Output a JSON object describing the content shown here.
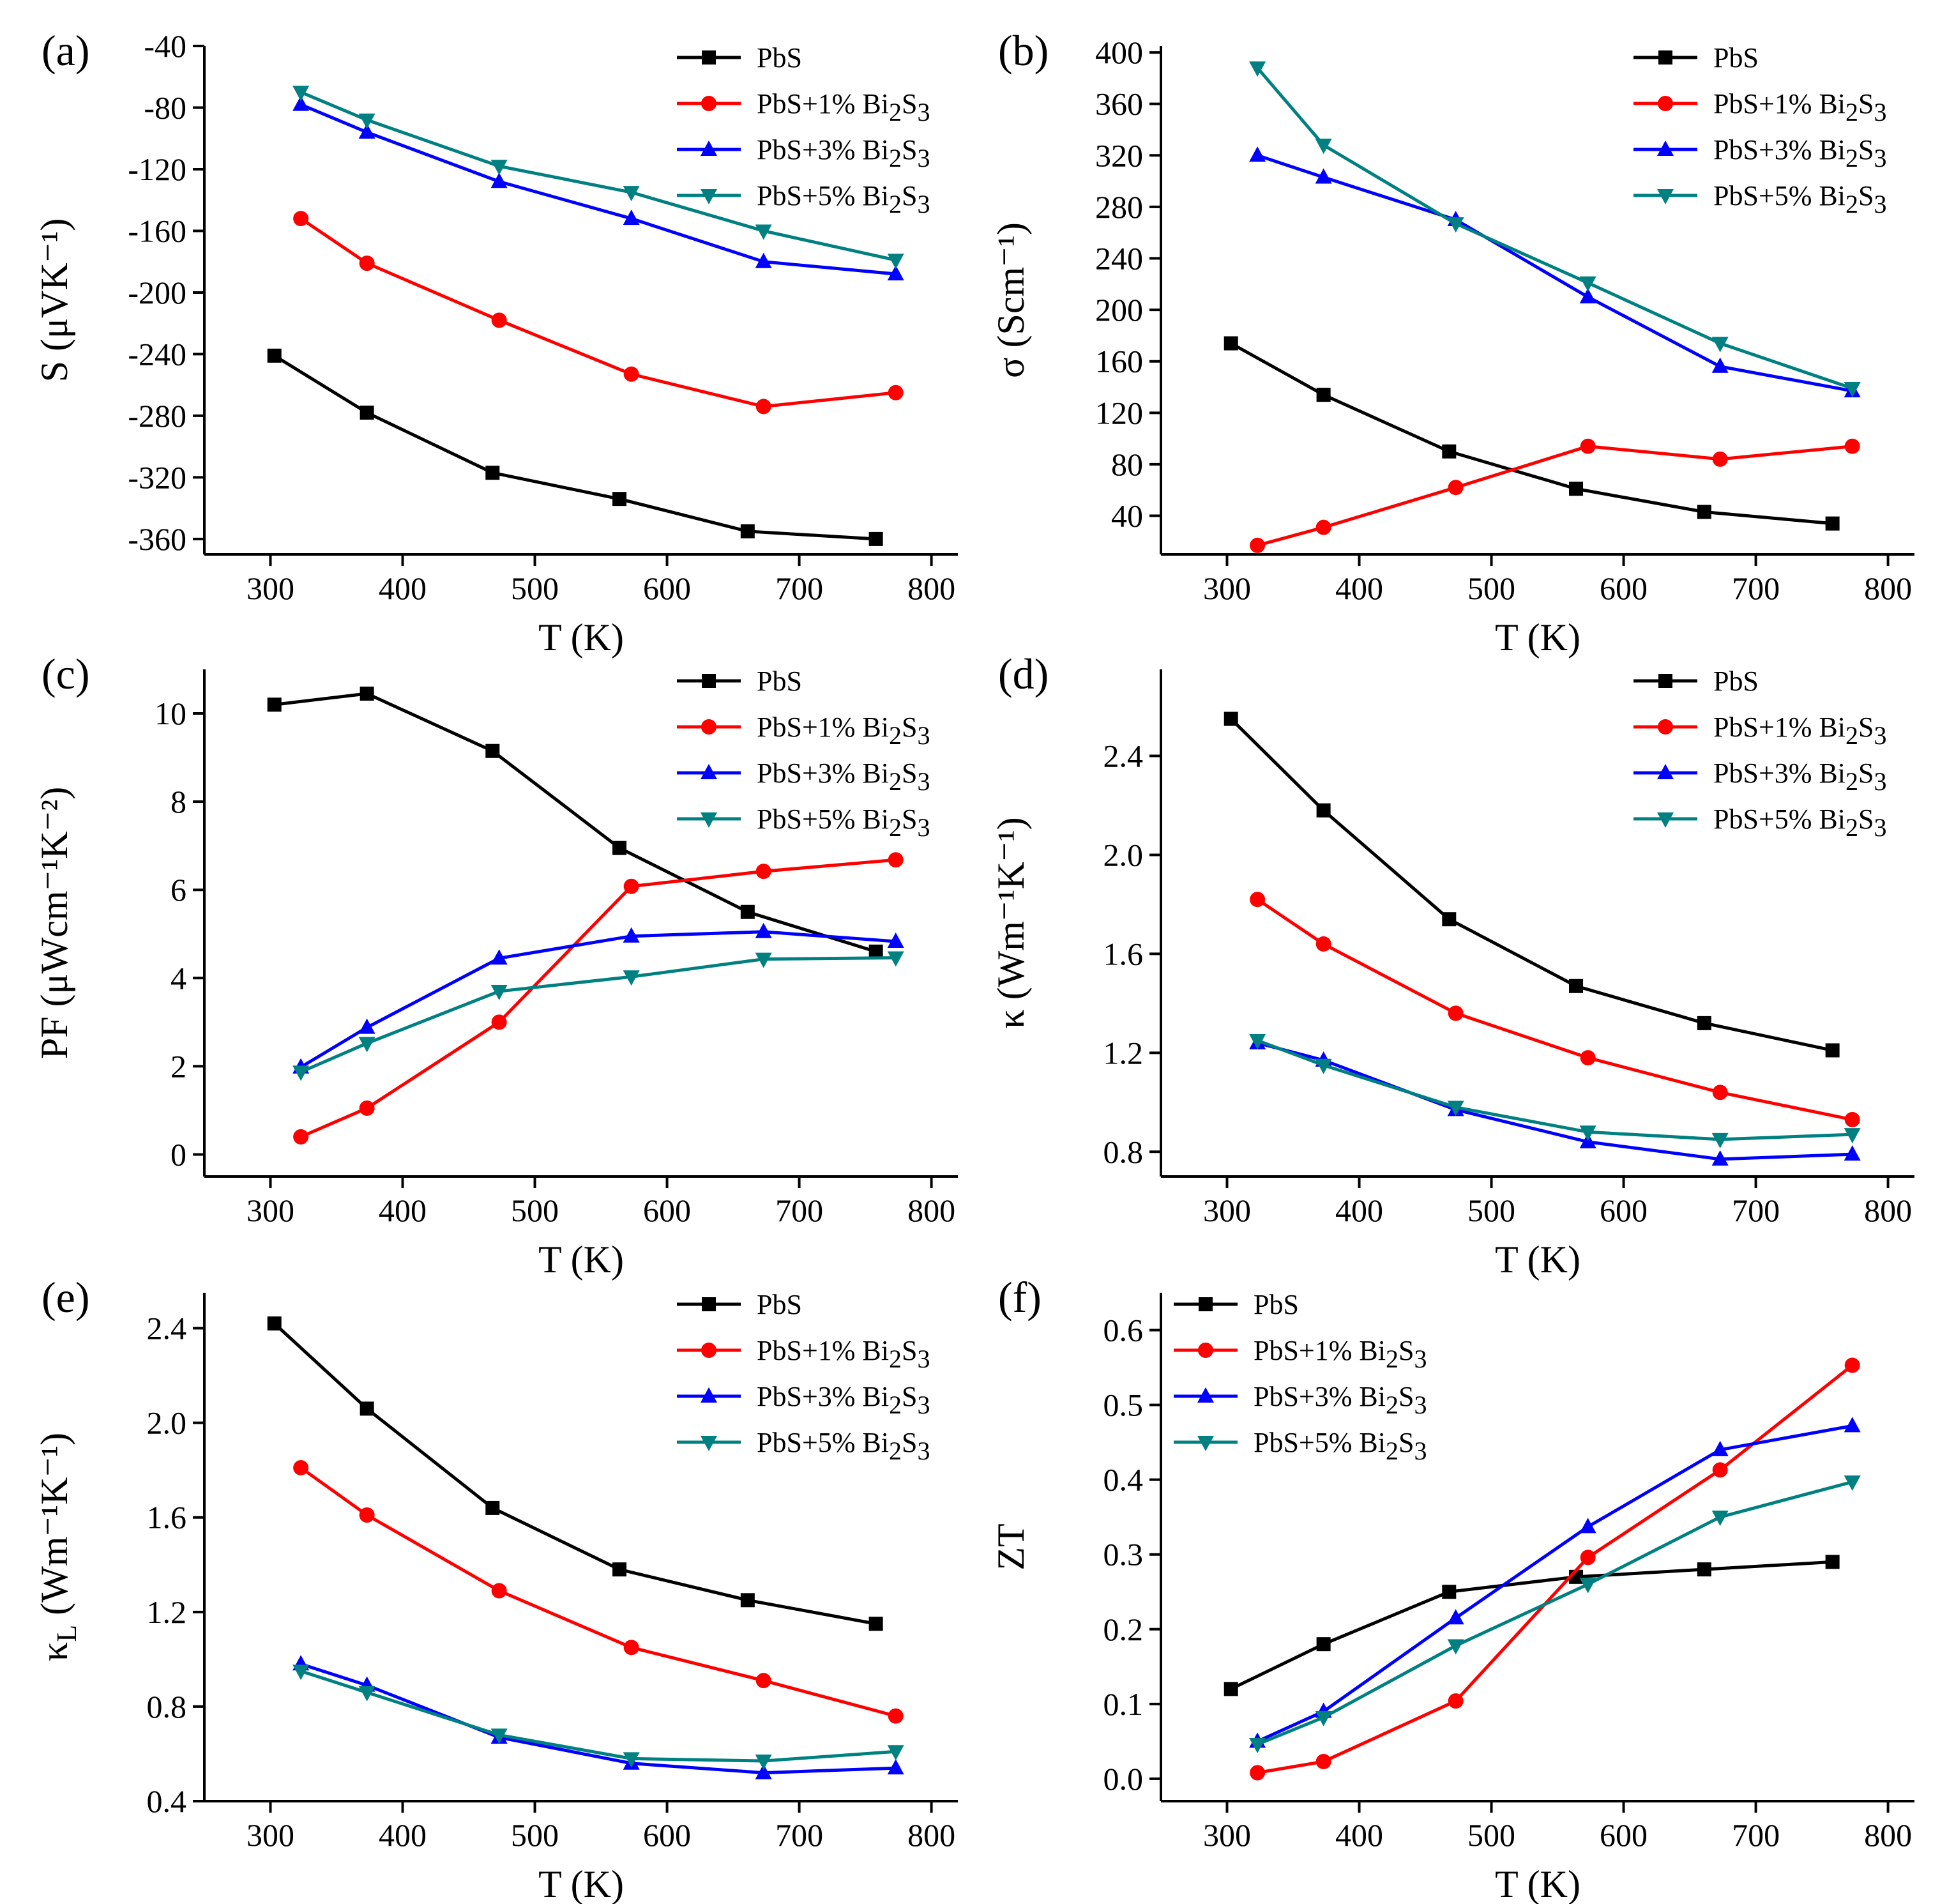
{
  "colors": {
    "PbS": "#000000",
    "1pct": "#ff0000",
    "3pct": "#0000ff",
    "5pct": "#008080"
  },
  "legend": {
    "series": [
      {
        "key": "PbS",
        "label": "PbS",
        "color": "#000000",
        "marker": "square"
      },
      {
        "key": "1pct",
        "label": "PbS+1% Bi2S3",
        "color": "#ff0000",
        "marker": "circle"
      },
      {
        "key": "3pct",
        "label": "PbS+3% Bi2S3",
        "color": "#0000ff",
        "marker": "triangle-up"
      },
      {
        "key": "5pct",
        "label": "PbS+5% Bi2S3",
        "color": "#008080",
        "marker": "triangle-down"
      }
    ]
  },
  "chart_data": [
    {
      "id": "a",
      "letter": "(a)",
      "type": "line",
      "xlabel": "T (K)",
      "ylabel": "S (μVK⁻¹)",
      "xlim": [
        250,
        820
      ],
      "ylim": [
        -370,
        -40
      ],
      "xticks": [
        300,
        400,
        500,
        600,
        700,
        800
      ],
      "yticks": [
        -40,
        -80,
        -120,
        -160,
        -200,
        -240,
        -280,
        -320,
        -360
      ],
      "legend_position": "top-right",
      "series": [
        {
          "key": "PbS",
          "x": [
            303,
            373,
            468,
            564,
            661,
            758
          ],
          "y": [
            -241,
            -278,
            -317,
            -334,
            -355,
            -360
          ]
        },
        {
          "key": "1pct",
          "x": [
            323,
            373,
            473,
            573,
            673,
            773
          ],
          "y": [
            -152,
            -181,
            -218,
            -253,
            -274,
            -265
          ]
        },
        {
          "key": "3pct",
          "x": [
            323,
            373,
            473,
            573,
            673,
            773
          ],
          "y": [
            -78,
            -96,
            -128,
            -152,
            -180,
            -188
          ]
        },
        {
          "key": "5pct",
          "x": [
            323,
            373,
            473,
            573,
            673,
            773
          ],
          "y": [
            -70,
            -88,
            -118,
            -135,
            -160,
            -179
          ]
        }
      ]
    },
    {
      "id": "b",
      "letter": "(b)",
      "type": "line",
      "xlabel": "T (K)",
      "ylabel": "σ (Scm⁻¹)",
      "xlim": [
        250,
        820
      ],
      "ylim": [
        10,
        405
      ],
      "xticks": [
        300,
        400,
        500,
        600,
        700,
        800
      ],
      "yticks": [
        40,
        80,
        120,
        160,
        200,
        240,
        280,
        320,
        360,
        400
      ],
      "legend_position": "top-right",
      "series": [
        {
          "key": "PbS",
          "x": [
            303,
            373,
            468,
            564,
            661,
            758
          ],
          "y": [
            174,
            134,
            90,
            61,
            43,
            34
          ]
        },
        {
          "key": "1pct",
          "x": [
            323,
            373,
            473,
            573,
            673,
            773
          ],
          "y": [
            17,
            31,
            62,
            94,
            84,
            94
          ]
        },
        {
          "key": "3pct",
          "x": [
            323,
            373,
            473,
            573,
            673,
            773
          ],
          "y": [
            320,
            303,
            270,
            210,
            156,
            137
          ]
        },
        {
          "key": "5pct",
          "x": [
            323,
            373,
            473,
            573,
            673,
            773
          ],
          "y": [
            388,
            328,
            267,
            221,
            174,
            139
          ]
        }
      ]
    },
    {
      "id": "c",
      "letter": "(c)",
      "type": "line",
      "xlabel": "T (K)",
      "ylabel": "PF (μWcm⁻¹K⁻²)",
      "xlim": [
        250,
        820
      ],
      "ylim": [
        -0.5,
        11
      ],
      "xticks": [
        300,
        400,
        500,
        600,
        700,
        800
      ],
      "yticks": [
        0,
        2,
        4,
        6,
        8,
        10
      ],
      "legend_position": "top-right",
      "series": [
        {
          "key": "PbS",
          "x": [
            303,
            373,
            468,
            564,
            661,
            758
          ],
          "y": [
            10.2,
            10.45,
            9.15,
            6.95,
            5.5,
            4.6
          ]
        },
        {
          "key": "1pct",
          "x": [
            323,
            373,
            473,
            573,
            673,
            773
          ],
          "y": [
            0.4,
            1.05,
            3.0,
            6.08,
            6.42,
            6.68
          ]
        },
        {
          "key": "3pct",
          "x": [
            323,
            373,
            473,
            573,
            673,
            773
          ],
          "y": [
            1.98,
            2.88,
            4.45,
            4.95,
            5.05,
            4.83
          ]
        },
        {
          "key": "5pct",
          "x": [
            323,
            373,
            473,
            573,
            673,
            773
          ],
          "y": [
            1.87,
            2.52,
            3.7,
            4.03,
            4.43,
            4.46
          ]
        }
      ]
    },
    {
      "id": "d",
      "letter": "(d)",
      "type": "line",
      "xlabel": "T (K)",
      "ylabel": "κ (Wm⁻¹K⁻¹)",
      "xlim": [
        250,
        820
      ],
      "ylim": [
        0.7,
        2.75
      ],
      "xticks": [
        300,
        400,
        500,
        600,
        700,
        800
      ],
      "yticks": [
        0.8,
        1.2,
        1.6,
        2.0,
        2.4
      ],
      "legend_position": "top-right",
      "series": [
        {
          "key": "PbS",
          "x": [
            303,
            373,
            468,
            564,
            661,
            758
          ],
          "y": [
            2.55,
            2.18,
            1.74,
            1.47,
            1.32,
            1.21
          ]
        },
        {
          "key": "1pct",
          "x": [
            323,
            373,
            473,
            573,
            673,
            773
          ],
          "y": [
            1.82,
            1.64,
            1.36,
            1.18,
            1.04,
            0.93
          ]
        },
        {
          "key": "3pct",
          "x": [
            323,
            373,
            473,
            573,
            673,
            773
          ],
          "y": [
            1.24,
            1.17,
            0.97,
            0.84,
            0.77,
            0.79
          ]
        },
        {
          "key": "5pct",
          "x": [
            323,
            373,
            473,
            573,
            673,
            773
          ],
          "y": [
            1.25,
            1.15,
            0.98,
            0.88,
            0.85,
            0.87
          ]
        }
      ]
    },
    {
      "id": "e",
      "letter": "(e)",
      "type": "line",
      "xlabel": "T (K)",
      "ylabel": "κL (Wm⁻¹K⁻¹)",
      "xlim": [
        250,
        820
      ],
      "ylim": [
        0.4,
        2.55
      ],
      "xticks": [
        300,
        400,
        500,
        600,
        700,
        800
      ],
      "yticks": [
        0.4,
        0.8,
        1.2,
        1.6,
        2.0,
        2.4
      ],
      "legend_position": "top-right",
      "series": [
        {
          "key": "PbS",
          "x": [
            303,
            373,
            468,
            564,
            661,
            758
          ],
          "y": [
            2.42,
            2.06,
            1.64,
            1.38,
            1.25,
            1.15
          ]
        },
        {
          "key": "1pct",
          "x": [
            323,
            373,
            473,
            573,
            673,
            773
          ],
          "y": [
            1.81,
            1.61,
            1.29,
            1.05,
            0.91,
            0.76
          ]
        },
        {
          "key": "3pct",
          "x": [
            323,
            373,
            473,
            573,
            673,
            773
          ],
          "y": [
            0.98,
            0.89,
            0.67,
            0.56,
            0.52,
            0.54
          ]
        },
        {
          "key": "5pct",
          "x": [
            323,
            373,
            473,
            573,
            673,
            773
          ],
          "y": [
            0.95,
            0.86,
            0.68,
            0.58,
            0.57,
            0.61
          ]
        }
      ]
    },
    {
      "id": "f",
      "letter": "(f)",
      "type": "line",
      "xlabel": "T (K)",
      "ylabel": "ZT",
      "xlim": [
        250,
        820
      ],
      "ylim": [
        -0.03,
        0.65
      ],
      "xticks": [
        300,
        400,
        500,
        600,
        700,
        800
      ],
      "yticks": [
        0.0,
        0.1,
        0.2,
        0.3,
        0.4,
        0.5,
        0.6
      ],
      "legend_position": "top-left",
      "series": [
        {
          "key": "PbS",
          "x": [
            303,
            373,
            468,
            564,
            661,
            758
          ],
          "y": [
            0.12,
            0.18,
            0.25,
            0.27,
            0.28,
            0.29
          ]
        },
        {
          "key": "1pct",
          "x": [
            323,
            373,
            473,
            573,
            673,
            773
          ],
          "y": [
            0.008,
            0.023,
            0.104,
            0.296,
            0.413,
            0.553
          ]
        },
        {
          "key": "3pct",
          "x": [
            323,
            373,
            473,
            573,
            673,
            773
          ],
          "y": [
            0.05,
            0.09,
            0.215,
            0.337,
            0.44,
            0.472
          ]
        },
        {
          "key": "5pct",
          "x": [
            323,
            373,
            473,
            573,
            673,
            773
          ],
          "y": [
            0.046,
            0.082,
            0.178,
            0.26,
            0.35,
            0.397
          ]
        }
      ]
    }
  ]
}
